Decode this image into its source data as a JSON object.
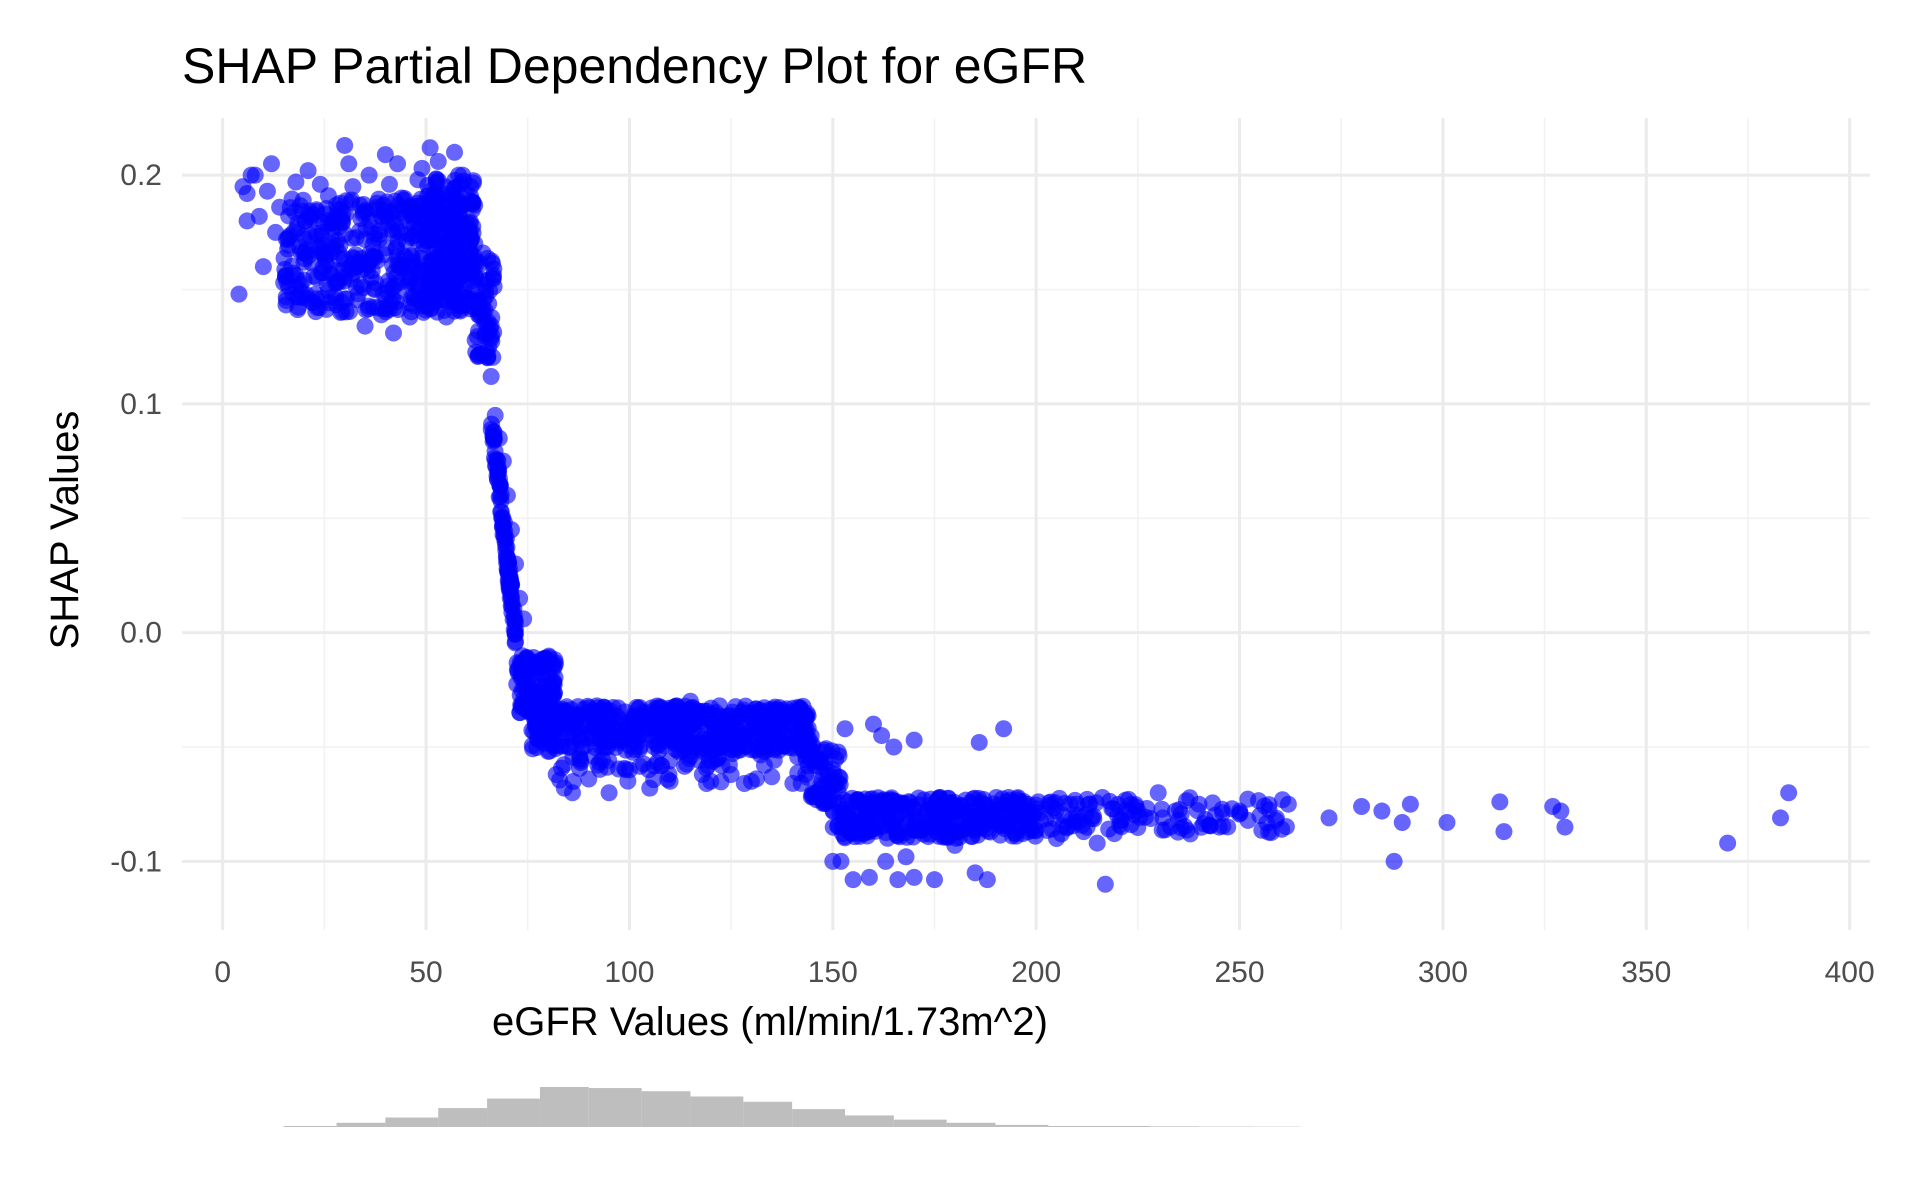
{
  "chart_data": {
    "type": "scatter",
    "title": "SHAP Partial Dependency Plot for eGFR",
    "xlabel": "eGFR Values (ml/min/1.73m^2)",
    "ylabel": "SHAP Values",
    "xlim": [
      -10,
      405
    ],
    "ylim": [
      -0.13,
      0.225
    ],
    "x_ticks": [
      0,
      50,
      100,
      150,
      200,
      250,
      300,
      350,
      400
    ],
    "x_tick_labels": [
      "0",
      "50",
      "100",
      "150",
      "200",
      "250",
      "300",
      "350",
      "400"
    ],
    "y_ticks": [
      -0.1,
      0.0,
      0.1,
      0.2
    ],
    "y_tick_labels": [
      "-0.1",
      "0.0",
      "0.1",
      "0.2"
    ],
    "grid": true,
    "point_color": "#0000ff",
    "histogram_color": "#bebebe",
    "series": [
      {
        "points": [
          [
            4,
            0.148
          ],
          [
            5,
            0.195
          ],
          [
            6,
            0.18
          ],
          [
            6,
            0.192
          ],
          [
            7,
            0.2
          ],
          [
            8,
            0.2
          ],
          [
            9,
            0.182
          ],
          [
            10,
            0.16
          ],
          [
            11,
            0.193
          ],
          [
            12,
            0.205
          ],
          [
            13,
            0.175
          ],
          [
            14,
            0.186
          ],
          [
            15,
            0.153
          ],
          [
            16,
            0.172
          ],
          [
            18,
            0.197
          ],
          [
            20,
            0.162
          ],
          [
            21,
            0.202
          ],
          [
            22,
            0.183
          ],
          [
            23,
            0.146
          ],
          [
            24,
            0.196
          ],
          [
            25,
            0.165
          ],
          [
            26,
            0.191
          ],
          [
            27,
            0.175
          ],
          [
            28,
            0.187
          ],
          [
            29,
            0.14
          ],
          [
            30,
            0.213
          ],
          [
            31,
            0.205
          ],
          [
            32,
            0.195
          ],
          [
            33,
            0.16
          ],
          [
            34,
            0.152
          ],
          [
            35,
            0.134
          ],
          [
            36,
            0.2
          ],
          [
            38,
            0.185
          ],
          [
            39,
            0.139
          ],
          [
            40,
            0.209
          ],
          [
            41,
            0.196
          ],
          [
            42,
            0.131
          ],
          [
            43,
            0.205
          ],
          [
            44,
            0.19
          ],
          [
            46,
            0.138
          ],
          [
            47,
            0.147
          ],
          [
            48,
            0.198
          ],
          [
            49,
            0.203
          ],
          [
            51,
            0.212
          ],
          [
            53,
            0.206
          ],
          [
            55,
            0.138
          ],
          [
            57,
            0.21
          ],
          [
            58,
            0.2
          ],
          [
            59,
            0.2
          ],
          [
            61,
            0.195
          ],
          [
            62,
            0.17
          ],
          [
            63,
            0.145
          ],
          [
            64,
            0.166
          ],
          [
            65,
            0.135
          ],
          [
            66,
            0.112
          ],
          [
            67,
            0.095
          ],
          [
            68,
            0.085
          ],
          [
            69,
            0.075
          ],
          [
            70,
            0.06
          ],
          [
            71,
            0.045
          ],
          [
            72,
            0.03
          ],
          [
            73,
            0.015
          ],
          [
            74,
            0.006
          ],
          [
            75,
            -0.012
          ],
          [
            76,
            -0.03
          ],
          [
            77,
            -0.038
          ],
          [
            78,
            -0.047
          ],
          [
            80,
            -0.013
          ],
          [
            82,
            -0.062
          ],
          [
            84,
            -0.068
          ],
          [
            86,
            -0.07
          ],
          [
            88,
            -0.056
          ],
          [
            90,
            -0.064
          ],
          [
            92,
            -0.032
          ],
          [
            95,
            -0.07
          ],
          [
            100,
            -0.06
          ],
          [
            105,
            -0.068
          ],
          [
            110,
            -0.065
          ],
          [
            115,
            -0.03
          ],
          [
            120,
            -0.065
          ],
          [
            125,
            -0.062
          ],
          [
            130,
            -0.065
          ],
          [
            135,
            -0.063
          ],
          [
            140,
            -0.036
          ],
          [
            145,
            -0.05
          ],
          [
            147,
            -0.068
          ],
          [
            150,
            -0.1
          ],
          [
            152,
            -0.1
          ],
          [
            153,
            -0.042
          ],
          [
            155,
            -0.108
          ],
          [
            157,
            -0.082
          ],
          [
            159,
            -0.107
          ],
          [
            160,
            -0.04
          ],
          [
            162,
            -0.045
          ],
          [
            163,
            -0.1
          ],
          [
            165,
            -0.05
          ],
          [
            166,
            -0.108
          ],
          [
            168,
            -0.098
          ],
          [
            170,
            -0.047
          ],
          [
            170,
            -0.107
          ],
          [
            172,
            -0.085
          ],
          [
            175,
            -0.108
          ],
          [
            180,
            -0.093
          ],
          [
            185,
            -0.105
          ],
          [
            186,
            -0.048
          ],
          [
            188,
            -0.108
          ],
          [
            190,
            -0.08
          ],
          [
            192,
            -0.042
          ],
          [
            195,
            -0.08
          ],
          [
            200,
            -0.077
          ],
          [
            205,
            -0.09
          ],
          [
            210,
            -0.075
          ],
          [
            215,
            -0.092
          ],
          [
            217,
            -0.11
          ],
          [
            220,
            -0.08
          ],
          [
            225,
            -0.078
          ],
          [
            230,
            -0.07
          ],
          [
            235,
            -0.082
          ],
          [
            240,
            -0.075
          ],
          [
            245,
            -0.085
          ],
          [
            250,
            -0.078
          ],
          [
            255,
            -0.08
          ],
          [
            262,
            -0.075
          ],
          [
            272,
            -0.081
          ],
          [
            280,
            -0.076
          ],
          [
            285,
            -0.078
          ],
          [
            288,
            -0.1
          ],
          [
            290,
            -0.083
          ],
          [
            292,
            -0.075
          ],
          [
            301,
            -0.083
          ],
          [
            314,
            -0.074
          ],
          [
            315,
            -0.087
          ],
          [
            327,
            -0.076
          ],
          [
            329,
            -0.078
          ],
          [
            330,
            -0.085
          ],
          [
            370,
            -0.092
          ],
          [
            383,
            -0.081
          ],
          [
            385,
            -0.07
          ]
        ]
      }
    ],
    "histogram": {
      "bin_edges": [
        15,
        28,
        40,
        53,
        65,
        78,
        90,
        103,
        115,
        128,
        140,
        153,
        165,
        178,
        190,
        203,
        215,
        228,
        240,
        253,
        265
      ],
      "counts": [
        1,
        4,
        9,
        18,
        27,
        38,
        37,
        34,
        29,
        24,
        17,
        11,
        7,
        4,
        2,
        1,
        1,
        0.6,
        0.4,
        0.3
      ]
    }
  }
}
